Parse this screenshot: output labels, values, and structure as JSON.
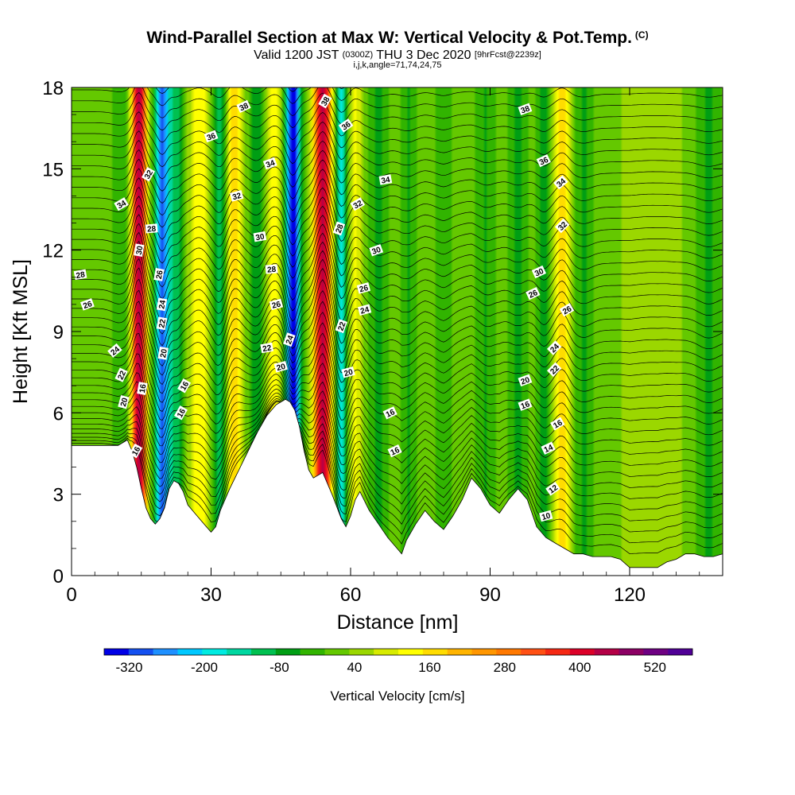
{
  "header": {
    "title": "Wind-Parallel Section at Max W: Vertical Velocity & Pot.Temp.",
    "copyright": "(C)",
    "valid": "Valid 1200 JST",
    "utc": "(0300Z)",
    "date": "THU 3 Dec 2020",
    "forecast": "[9hrFcst@2239z]",
    "params": "i,j,k,angle=71,74,24,75"
  },
  "chart_data": {
    "type": "heatmap",
    "xlabel": "Distance [nm]",
    "ylabel": "Height [Kft MSL]",
    "xlim": [
      0,
      140
    ],
    "ylim": [
      0,
      18
    ],
    "x_ticks": [
      "0",
      "30",
      "60",
      "90",
      "120"
    ],
    "y_ticks": [
      "0",
      "3",
      "6",
      "9",
      "12",
      "15",
      "18"
    ],
    "colorbar": {
      "label": "Vertical Velocity [cm/s]",
      "tick_labels": [
        "-320",
        "-200",
        "-80",
        "40",
        "160",
        "280",
        "400",
        "520"
      ],
      "tick_values": [
        -320,
        -200,
        -80,
        40,
        160,
        280,
        400,
        520
      ],
      "range": [
        -360,
        580
      ],
      "colors": [
        "#0000e6",
        "#1450f0",
        "#1e90ff",
        "#00c8ff",
        "#00ebe1",
        "#00d7a0",
        "#00c050",
        "#009e14",
        "#31b400",
        "#64c800",
        "#9bd700",
        "#d7eb00",
        "#ffff00",
        "#ffdc00",
        "#ffb400",
        "#ff9600",
        "#ff7800",
        "#ff5014",
        "#f52814",
        "#dc0028",
        "#b40046",
        "#8c0064",
        "#6e0082",
        "#500096"
      ]
    },
    "vertical_velocity_columns": [
      {
        "x": 10.5,
        "w": 2.5,
        "cms": -30
      },
      {
        "x": 14.5,
        "w": 1.6,
        "cms": 460
      },
      {
        "x": 19.5,
        "w": 1.6,
        "cms": -300
      },
      {
        "x": 22.5,
        "w": 1.5,
        "cms": -110
      },
      {
        "x": 27.5,
        "w": 2.2,
        "cms": 140
      },
      {
        "x": 32.0,
        "w": 1.6,
        "cms": -120
      },
      {
        "x": 35.0,
        "w": 2.0,
        "cms": 180
      },
      {
        "x": 40.0,
        "w": 2.0,
        "cms": -90
      },
      {
        "x": 43.5,
        "w": 2.2,
        "cms": 130
      },
      {
        "x": 47.5,
        "w": 1.7,
        "cms": -360
      },
      {
        "x": 54.0,
        "w": 2.0,
        "cms": 440
      },
      {
        "x": 58.0,
        "w": 1.4,
        "cms": -180
      },
      {
        "x": 61.0,
        "w": 1.5,
        "cms": 120
      },
      {
        "x": 66.0,
        "w": 2.0,
        "cms": -60
      },
      {
        "x": 72.5,
        "w": 2.0,
        "cms": -50
      },
      {
        "x": 80.0,
        "w": 2.2,
        "cms": -40
      },
      {
        "x": 89.0,
        "w": 2.2,
        "cms": -50
      },
      {
        "x": 96.0,
        "w": 2.0,
        "cms": -60
      },
      {
        "x": 101.5,
        "w": 1.6,
        "cms": -70
      },
      {
        "x": 105.5,
        "w": 1.8,
        "cms": 170
      },
      {
        "x": 110.0,
        "w": 2.5,
        "cms": -50
      },
      {
        "x": 125.0,
        "w": 6.0,
        "cms": 60
      },
      {
        "x": 137.0,
        "w": 3.0,
        "cms": -50
      }
    ],
    "terrain": {
      "x": [
        0,
        5,
        10,
        12,
        13,
        14,
        15,
        16,
        17,
        18,
        19,
        20,
        21,
        22,
        23,
        24,
        25,
        27,
        29,
        30,
        31,
        32,
        34,
        36,
        38,
        40,
        42,
        44,
        46,
        47,
        48,
        49,
        50,
        51,
        52,
        54,
        56,
        58,
        59,
        60,
        61,
        62,
        64,
        66,
        68,
        70,
        71,
        72,
        74,
        76,
        78,
        80,
        82,
        84,
        86,
        88,
        90,
        92,
        94,
        96,
        98,
        100,
        102,
        104,
        106,
        108,
        110,
        112,
        114,
        116,
        118,
        120,
        122,
        124,
        126,
        128,
        130,
        132,
        134,
        136,
        138,
        140
      ],
      "h": [
        4.8,
        4.8,
        4.8,
        5.0,
        4.6,
        4.0,
        3.2,
        2.5,
        2.1,
        1.9,
        2.1,
        2.5,
        3.2,
        3.5,
        3.4,
        3.1,
        2.6,
        2.2,
        1.8,
        1.6,
        1.8,
        2.4,
        3.2,
        3.9,
        4.6,
        5.3,
        5.9,
        6.3,
        6.5,
        6.4,
        6.1,
        5.5,
        4.6,
        3.9,
        3.6,
        3.8,
        3.0,
        2.1,
        1.8,
        2.2,
        2.8,
        3.1,
        2.4,
        1.9,
        1.4,
        1.0,
        0.8,
        1.3,
        1.9,
        2.4,
        2.0,
        1.7,
        2.2,
        2.8,
        3.6,
        3.2,
        2.6,
        2.3,
        2.8,
        3.2,
        2.8,
        1.8,
        1.4,
        1.2,
        1.0,
        0.8,
        0.8,
        0.7,
        0.7,
        0.7,
        0.6,
        0.3,
        0.3,
        0.3,
        0.3,
        0.5,
        0.6,
        0.8,
        0.8,
        0.7,
        0.7,
        0.8
      ]
    },
    "theta_contours": {
      "levels": [
        10,
        12,
        14,
        16,
        18,
        20,
        22,
        24,
        26,
        28,
        30,
        32,
        34,
        36,
        38
      ],
      "labels": [
        {
          "text": "10",
          "x": 102,
          "y": 2.2,
          "rot": 15
        },
        {
          "text": "12",
          "x": 103.5,
          "y": 3.2,
          "rot": 35
        },
        {
          "text": "14",
          "x": 102.5,
          "y": 4.7,
          "rot": 25
        },
        {
          "text": "16",
          "x": 69.5,
          "y": 4.6,
          "rot": 25
        },
        {
          "text": "16",
          "x": 13.8,
          "y": 4.6,
          "rot": 60
        },
        {
          "text": "16",
          "x": 68.5,
          "y": 6.0,
          "rot": 25
        },
        {
          "text": "16",
          "x": 104.5,
          "y": 5.6,
          "rot": 30
        },
        {
          "text": "16",
          "x": 97.5,
          "y": 6.3,
          "rot": 20
        },
        {
          "text": "16",
          "x": 23.5,
          "y": 6.0,
          "rot": 60
        },
        {
          "text": "16",
          "x": 24.2,
          "y": 7.0,
          "rot": 60
        },
        {
          "text": "16",
          "x": 15.2,
          "y": 6.9,
          "rot": 80
        },
        {
          "text": "20",
          "x": 11.2,
          "y": 6.4,
          "rot": 75
        },
        {
          "text": "20",
          "x": 45.0,
          "y": 7.7,
          "rot": 15
        },
        {
          "text": "20",
          "x": 59.5,
          "y": 7.5,
          "rot": 15
        },
        {
          "text": "20",
          "x": 97.5,
          "y": 7.2,
          "rot": 20
        },
        {
          "text": "20",
          "x": 19.7,
          "y": 8.2,
          "rot": 80
        },
        {
          "text": "22",
          "x": 10.7,
          "y": 7.4,
          "rot": 65
        },
        {
          "text": "22",
          "x": 42.0,
          "y": 8.4,
          "rot": 10
        },
        {
          "text": "22",
          "x": 103.8,
          "y": 7.6,
          "rot": 45
        },
        {
          "text": "22",
          "x": 19.4,
          "y": 9.3,
          "rot": 80
        },
        {
          "text": "22",
          "x": 58.0,
          "y": 9.2,
          "rot": 70
        },
        {
          "text": "24",
          "x": 9.3,
          "y": 8.3,
          "rot": 40
        },
        {
          "text": "24",
          "x": 46.8,
          "y": 8.7,
          "rot": 70
        },
        {
          "text": "24",
          "x": 103.8,
          "y": 8.4,
          "rot": 45
        },
        {
          "text": "24",
          "x": 19.4,
          "y": 10.0,
          "rot": 80
        },
        {
          "text": "24",
          "x": 63.0,
          "y": 9.8,
          "rot": 15
        },
        {
          "text": "26",
          "x": 3.4,
          "y": 10.0,
          "rot": 20
        },
        {
          "text": "26",
          "x": 44.0,
          "y": 10.0,
          "rot": 15
        },
        {
          "text": "26",
          "x": 62.8,
          "y": 10.6,
          "rot": 15
        },
        {
          "text": "26",
          "x": 106.5,
          "y": 9.8,
          "rot": 30
        },
        {
          "text": "26",
          "x": 18.8,
          "y": 11.1,
          "rot": 80
        },
        {
          "text": "26",
          "x": 99.2,
          "y": 10.4,
          "rot": 25
        },
        {
          "text": "28",
          "x": 1.9,
          "y": 11.1,
          "rot": 10
        },
        {
          "text": "28",
          "x": 43.0,
          "y": 11.3,
          "rot": 5
        },
        {
          "text": "28",
          "x": 17.2,
          "y": 12.8,
          "rot": 5
        },
        {
          "text": "28",
          "x": 57.5,
          "y": 12.8,
          "rot": 70
        },
        {
          "text": "30",
          "x": 14.5,
          "y": 12.0,
          "rot": 80
        },
        {
          "text": "30",
          "x": 40.5,
          "y": 12.5,
          "rot": 10
        },
        {
          "text": "30",
          "x": 65.5,
          "y": 12.0,
          "rot": 20
        },
        {
          "text": "30",
          "x": 100.5,
          "y": 11.2,
          "rot": 25
        },
        {
          "text": "32",
          "x": 35.5,
          "y": 14.0,
          "rot": 15
        },
        {
          "text": "32",
          "x": 61.5,
          "y": 13.7,
          "rot": 30
        },
        {
          "text": "32",
          "x": 105.5,
          "y": 12.9,
          "rot": 45
        },
        {
          "text": "32",
          "x": 16.5,
          "y": 14.8,
          "rot": 60
        },
        {
          "text": "34",
          "x": 10.7,
          "y": 13.7,
          "rot": 30
        },
        {
          "text": "34",
          "x": 42.7,
          "y": 15.2,
          "rot": 20
        },
        {
          "text": "34",
          "x": 67.5,
          "y": 14.6,
          "rot": 10
        },
        {
          "text": "34",
          "x": 105.2,
          "y": 14.5,
          "rot": 40
        },
        {
          "text": "36",
          "x": 30.0,
          "y": 16.2,
          "rot": 20
        },
        {
          "text": "36",
          "x": 59.0,
          "y": 16.6,
          "rot": 35
        },
        {
          "text": "36",
          "x": 101.5,
          "y": 15.3,
          "rot": 25
        },
        {
          "text": "38",
          "x": 37.0,
          "y": 17.3,
          "rot": 25
        },
        {
          "text": "38",
          "x": 54.5,
          "y": 17.5,
          "rot": 60
        },
        {
          "text": "38",
          "x": 97.5,
          "y": 17.2,
          "rot": 20
        }
      ]
    }
  }
}
